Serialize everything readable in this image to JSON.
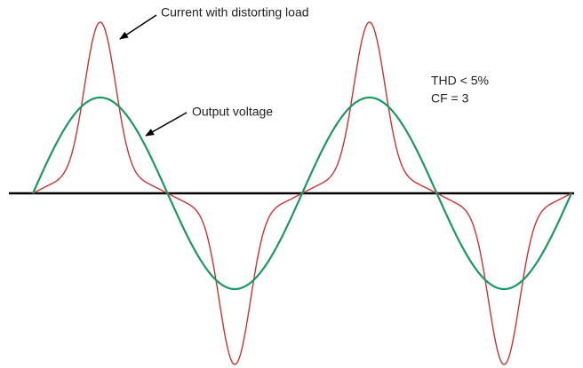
{
  "annotations": {
    "current": "Current with distorting load",
    "voltage": "Output voltage",
    "thd": "THD < 5%",
    "cf": "CF = 3"
  }
}
